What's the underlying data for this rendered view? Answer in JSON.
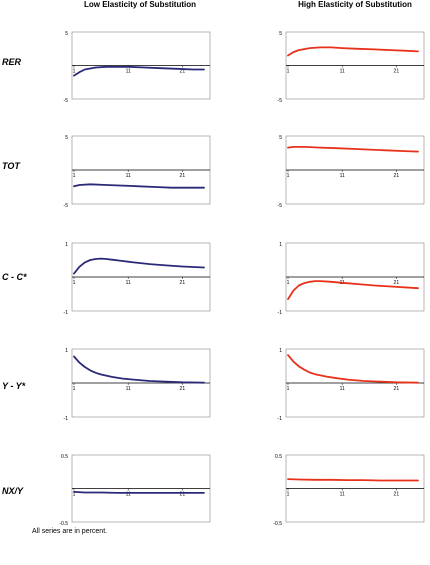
{
  "header": {
    "left": "Low Elasticity of Substitution",
    "right": "High Elasticity of Substitution"
  },
  "footnote": "All series are in percent.",
  "colors": {
    "low": "#2b2a78",
    "high": "#e8311b",
    "axis": "#000000",
    "frame": "#888888"
  },
  "rows": [
    "RER",
    "TOT",
    "C - C*",
    "Y - Y*",
    "NX/Y"
  ],
  "chart_data": [
    {
      "type": "line",
      "row": "RER",
      "side": "low",
      "ylim": [
        -5,
        5
      ],
      "yticks": [
        "5",
        "-5"
      ],
      "xticks": [
        "1",
        "11",
        "21"
      ],
      "x": [
        1,
        2,
        3,
        5,
        7,
        9,
        11,
        14,
        17,
        20,
        23,
        25
      ],
      "series": [
        {
          "values": [
            -1.5,
            -1.0,
            -0.6,
            -0.3,
            -0.2,
            -0.2,
            -0.2,
            -0.3,
            -0.4,
            -0.5,
            -0.6,
            -0.6
          ]
        }
      ]
    },
    {
      "type": "line",
      "row": "RER",
      "side": "high",
      "ylim": [
        -5,
        5
      ],
      "yticks": [
        "5",
        "-5"
      ],
      "xticks": [
        "1",
        "11",
        "21"
      ],
      "x": [
        1,
        2,
        3,
        5,
        7,
        9,
        11,
        14,
        17,
        20,
        23,
        25
      ],
      "series": [
        {
          "values": [
            1.5,
            2.0,
            2.3,
            2.6,
            2.7,
            2.7,
            2.6,
            2.5,
            2.4,
            2.3,
            2.2,
            2.1
          ]
        }
      ]
    },
    {
      "type": "line",
      "row": "TOT",
      "side": "low",
      "ylim": [
        -5,
        5
      ],
      "yticks": [
        "5",
        "-5"
      ],
      "xticks": [
        "1",
        "11",
        "21"
      ],
      "x": [
        1,
        2,
        4,
        7,
        10,
        13,
        16,
        19,
        22,
        25
      ],
      "series": [
        {
          "values": [
            -2.4,
            -2.2,
            -2.1,
            -2.2,
            -2.3,
            -2.4,
            -2.5,
            -2.6,
            -2.6,
            -2.6
          ]
        }
      ]
    },
    {
      "type": "line",
      "row": "TOT",
      "side": "high",
      "ylim": [
        -5,
        5
      ],
      "yticks": [
        "5",
        "-5"
      ],
      "xticks": [
        "1",
        "11",
        "21"
      ],
      "x": [
        1,
        2,
        4,
        7,
        10,
        13,
        16,
        19,
        22,
        25
      ],
      "series": [
        {
          "values": [
            3.3,
            3.4,
            3.4,
            3.3,
            3.2,
            3.1,
            3.0,
            2.9,
            2.8,
            2.7
          ]
        }
      ]
    },
    {
      "type": "line",
      "row": "C - C*",
      "side": "low",
      "ylim": [
        -1,
        1
      ],
      "yticks": [
        "1",
        "-1"
      ],
      "xticks": [
        "1",
        "11",
        "21"
      ],
      "x": [
        1,
        2,
        3,
        4,
        5,
        6,
        7,
        8,
        10,
        12,
        15,
        18,
        21,
        25
      ],
      "series": [
        {
          "values": [
            0.1,
            0.3,
            0.43,
            0.5,
            0.53,
            0.54,
            0.53,
            0.51,
            0.47,
            0.43,
            0.38,
            0.34,
            0.31,
            0.28
          ]
        }
      ]
    },
    {
      "type": "line",
      "row": "C - C*",
      "side": "high",
      "ylim": [
        -1,
        1
      ],
      "yticks": [
        "1",
        "-1"
      ],
      "xticks": [
        "1",
        "11",
        "21"
      ],
      "x": [
        1,
        2,
        3,
        4,
        5,
        6,
        7,
        9,
        11,
        14,
        17,
        20,
        25
      ],
      "series": [
        {
          "values": [
            -0.65,
            -0.4,
            -0.25,
            -0.18,
            -0.14,
            -0.12,
            -0.12,
            -0.14,
            -0.17,
            -0.21,
            -0.25,
            -0.28,
            -0.33
          ]
        }
      ]
    },
    {
      "type": "line",
      "row": "Y - Y*",
      "side": "low",
      "ylim": [
        -1,
        1
      ],
      "yticks": [
        "1",
        "-1"
      ],
      "xticks": [
        "1",
        "11",
        "21"
      ],
      "x": [
        1,
        2,
        3,
        4,
        5,
        6,
        8,
        10,
        12,
        15,
        18,
        21,
        25
      ],
      "series": [
        {
          "values": [
            0.78,
            0.6,
            0.47,
            0.37,
            0.3,
            0.25,
            0.18,
            0.13,
            0.1,
            0.06,
            0.04,
            0.02,
            0.01
          ]
        }
      ]
    },
    {
      "type": "line",
      "row": "Y - Y*",
      "side": "high",
      "ylim": [
        -1,
        1
      ],
      "yticks": [
        "1",
        "-1"
      ],
      "xticks": [
        "1",
        "11",
        "21"
      ],
      "x": [
        1,
        2,
        3,
        4,
        5,
        6,
        8,
        10,
        12,
        15,
        18,
        21,
        25
      ],
      "series": [
        {
          "values": [
            0.82,
            0.63,
            0.49,
            0.39,
            0.31,
            0.26,
            0.19,
            0.14,
            0.1,
            0.06,
            0.04,
            0.02,
            0.01
          ]
        }
      ]
    },
    {
      "type": "line",
      "row": "NX/Y",
      "side": "low",
      "ylim": [
        -0.5,
        0.5
      ],
      "yticks": [
        "0.5",
        "-0.5"
      ],
      "xticks": [
        "1",
        "11",
        "21"
      ],
      "x": [
        1,
        3,
        6,
        9,
        12,
        15,
        18,
        21,
        25
      ],
      "series": [
        {
          "values": [
            -0.05,
            -0.06,
            -0.06,
            -0.065,
            -0.065,
            -0.065,
            -0.065,
            -0.065,
            -0.065
          ]
        }
      ]
    },
    {
      "type": "line",
      "row": "NX/Y",
      "side": "high",
      "ylim": [
        -0.5,
        0.5
      ],
      "yticks": [
        "0.5",
        "-0.5"
      ],
      "xticks": [
        "1",
        "11",
        "21"
      ],
      "x": [
        1,
        3,
        6,
        9,
        12,
        15,
        18,
        21,
        25
      ],
      "series": [
        {
          "values": [
            0.14,
            0.135,
            0.13,
            0.13,
            0.125,
            0.125,
            0.12,
            0.12,
            0.12
          ]
        }
      ]
    }
  ]
}
